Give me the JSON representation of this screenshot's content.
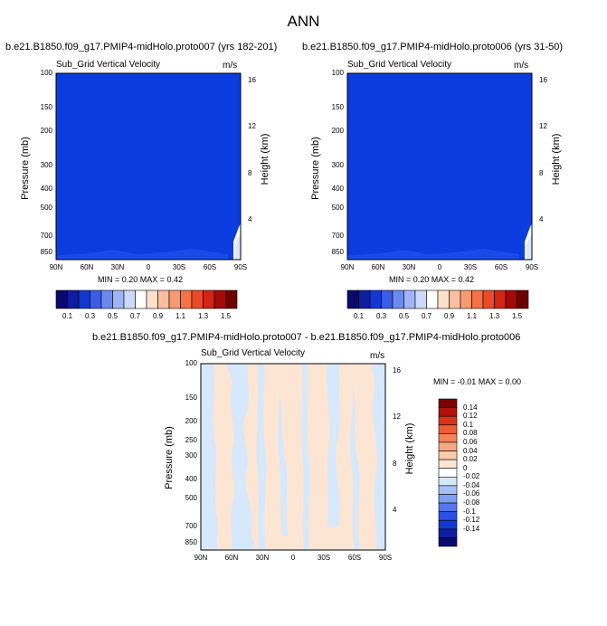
{
  "page_title": "ANN",
  "colors": {
    "panel_fill": "#0b3ce0",
    "diff_pos": "#fde5d3",
    "diff_neg": "#d6e8fb",
    "abs_levels": [
      "#0a0a6e",
      "#0d1ea0",
      "#1238d2",
      "#3a5ce8",
      "#6b8af0",
      "#9fb5f6",
      "#cdd9fa",
      "#ffffff",
      "#fde0cc",
      "#fbbfa0",
      "#f89a70",
      "#f47246",
      "#ec4a26",
      "#d42412",
      "#a30a08",
      "#6e0000"
    ],
    "diff_levels": [
      "#0a0a6e",
      "#0d1ea0",
      "#1238d2",
      "#2c50e4",
      "#5478ec",
      "#7f9ef2",
      "#a8c0f6",
      "#d6e8fb",
      "#ffffff",
      "#fde5d3",
      "#fbc9ac",
      "#f8a881",
      "#f48458",
      "#ee5c34",
      "#d8321a",
      "#b01208",
      "#7a0000"
    ]
  },
  "chart_data": [
    {
      "type": "heatmap",
      "title": "b.e21.B1850.f09_g17.PMIP4-midHolo.proto007 (yrs 182-201)",
      "subtitle": "Sub_Grid Vertical Velocity",
      "units": "m/s",
      "xlabel": "",
      "ylabel": "Pressure (mb)",
      "ylabel_right": "Height (km)",
      "x_ticks": [
        "90N",
        "60N",
        "30N",
        "0",
        "30S",
        "60S",
        "90S"
      ],
      "y_ticks": [
        "100",
        "150",
        "200",
        "300",
        "400",
        "500",
        "700",
        "850"
      ],
      "y_ticks_right": [
        "16",
        "12",
        "8",
        "4"
      ],
      "min_max": "MIN =  0.20   MAX =   0.42",
      "colorbar_labels": [
        "0.1",
        "0.3",
        "0.5",
        "0.7",
        "0.9",
        "1.1",
        "1.3",
        "1.5"
      ]
    },
    {
      "type": "heatmap",
      "title": "b.e21.B1850.f09_g17.PMIP4-midHolo.proto006 (yrs 31-50)",
      "subtitle": "Sub_Grid Vertical Velocity",
      "units": "m/s",
      "xlabel": "",
      "ylabel": "Pressure (mb)",
      "ylabel_right": "Height (km)",
      "x_ticks": [
        "90N",
        "60N",
        "30N",
        "0",
        "30S",
        "60S",
        "90S"
      ],
      "y_ticks": [
        "100",
        "150",
        "200",
        "300",
        "400",
        "500",
        "700",
        "850"
      ],
      "y_ticks_right": [
        "16",
        "12",
        "8",
        "4"
      ],
      "min_max": "MIN =  0.20   MAX =   0.42",
      "colorbar_labels": [
        "0.1",
        "0.3",
        "0.5",
        "0.7",
        "0.9",
        "1.1",
        "1.3",
        "1.5"
      ]
    },
    {
      "type": "heatmap",
      "title": "b.e21.B1850.f09_g17.PMIP4-midHolo.proto007 - b.e21.B1850.f09_g17.PMIP4-midHolo.proto006",
      "subtitle": "Sub_Grid Vertical Velocity",
      "units": "m/s",
      "xlabel": "",
      "ylabel": "Pressure (mb)",
      "ylabel_right": "Height (km)",
      "x_ticks": [
        "90N",
        "60N",
        "30N",
        "0",
        "30S",
        "60S",
        "90S"
      ],
      "y_ticks": [
        "100",
        "150",
        "200",
        "250",
        "300",
        "400",
        "500",
        "700",
        "850"
      ],
      "y_ticks_right": [
        "16",
        "12",
        "8",
        "4"
      ],
      "min_max": "MIN = -0.01   MAX =   0.00",
      "colorbar_labels": [
        "0.14",
        "0.12",
        "0.1",
        "0.08",
        "0.06",
        "0.04",
        "0.02",
        "0",
        "-0.02",
        "-0.04",
        "-0.06",
        "-0.08",
        "-0.1",
        "-0.12",
        "-0.14"
      ]
    }
  ]
}
